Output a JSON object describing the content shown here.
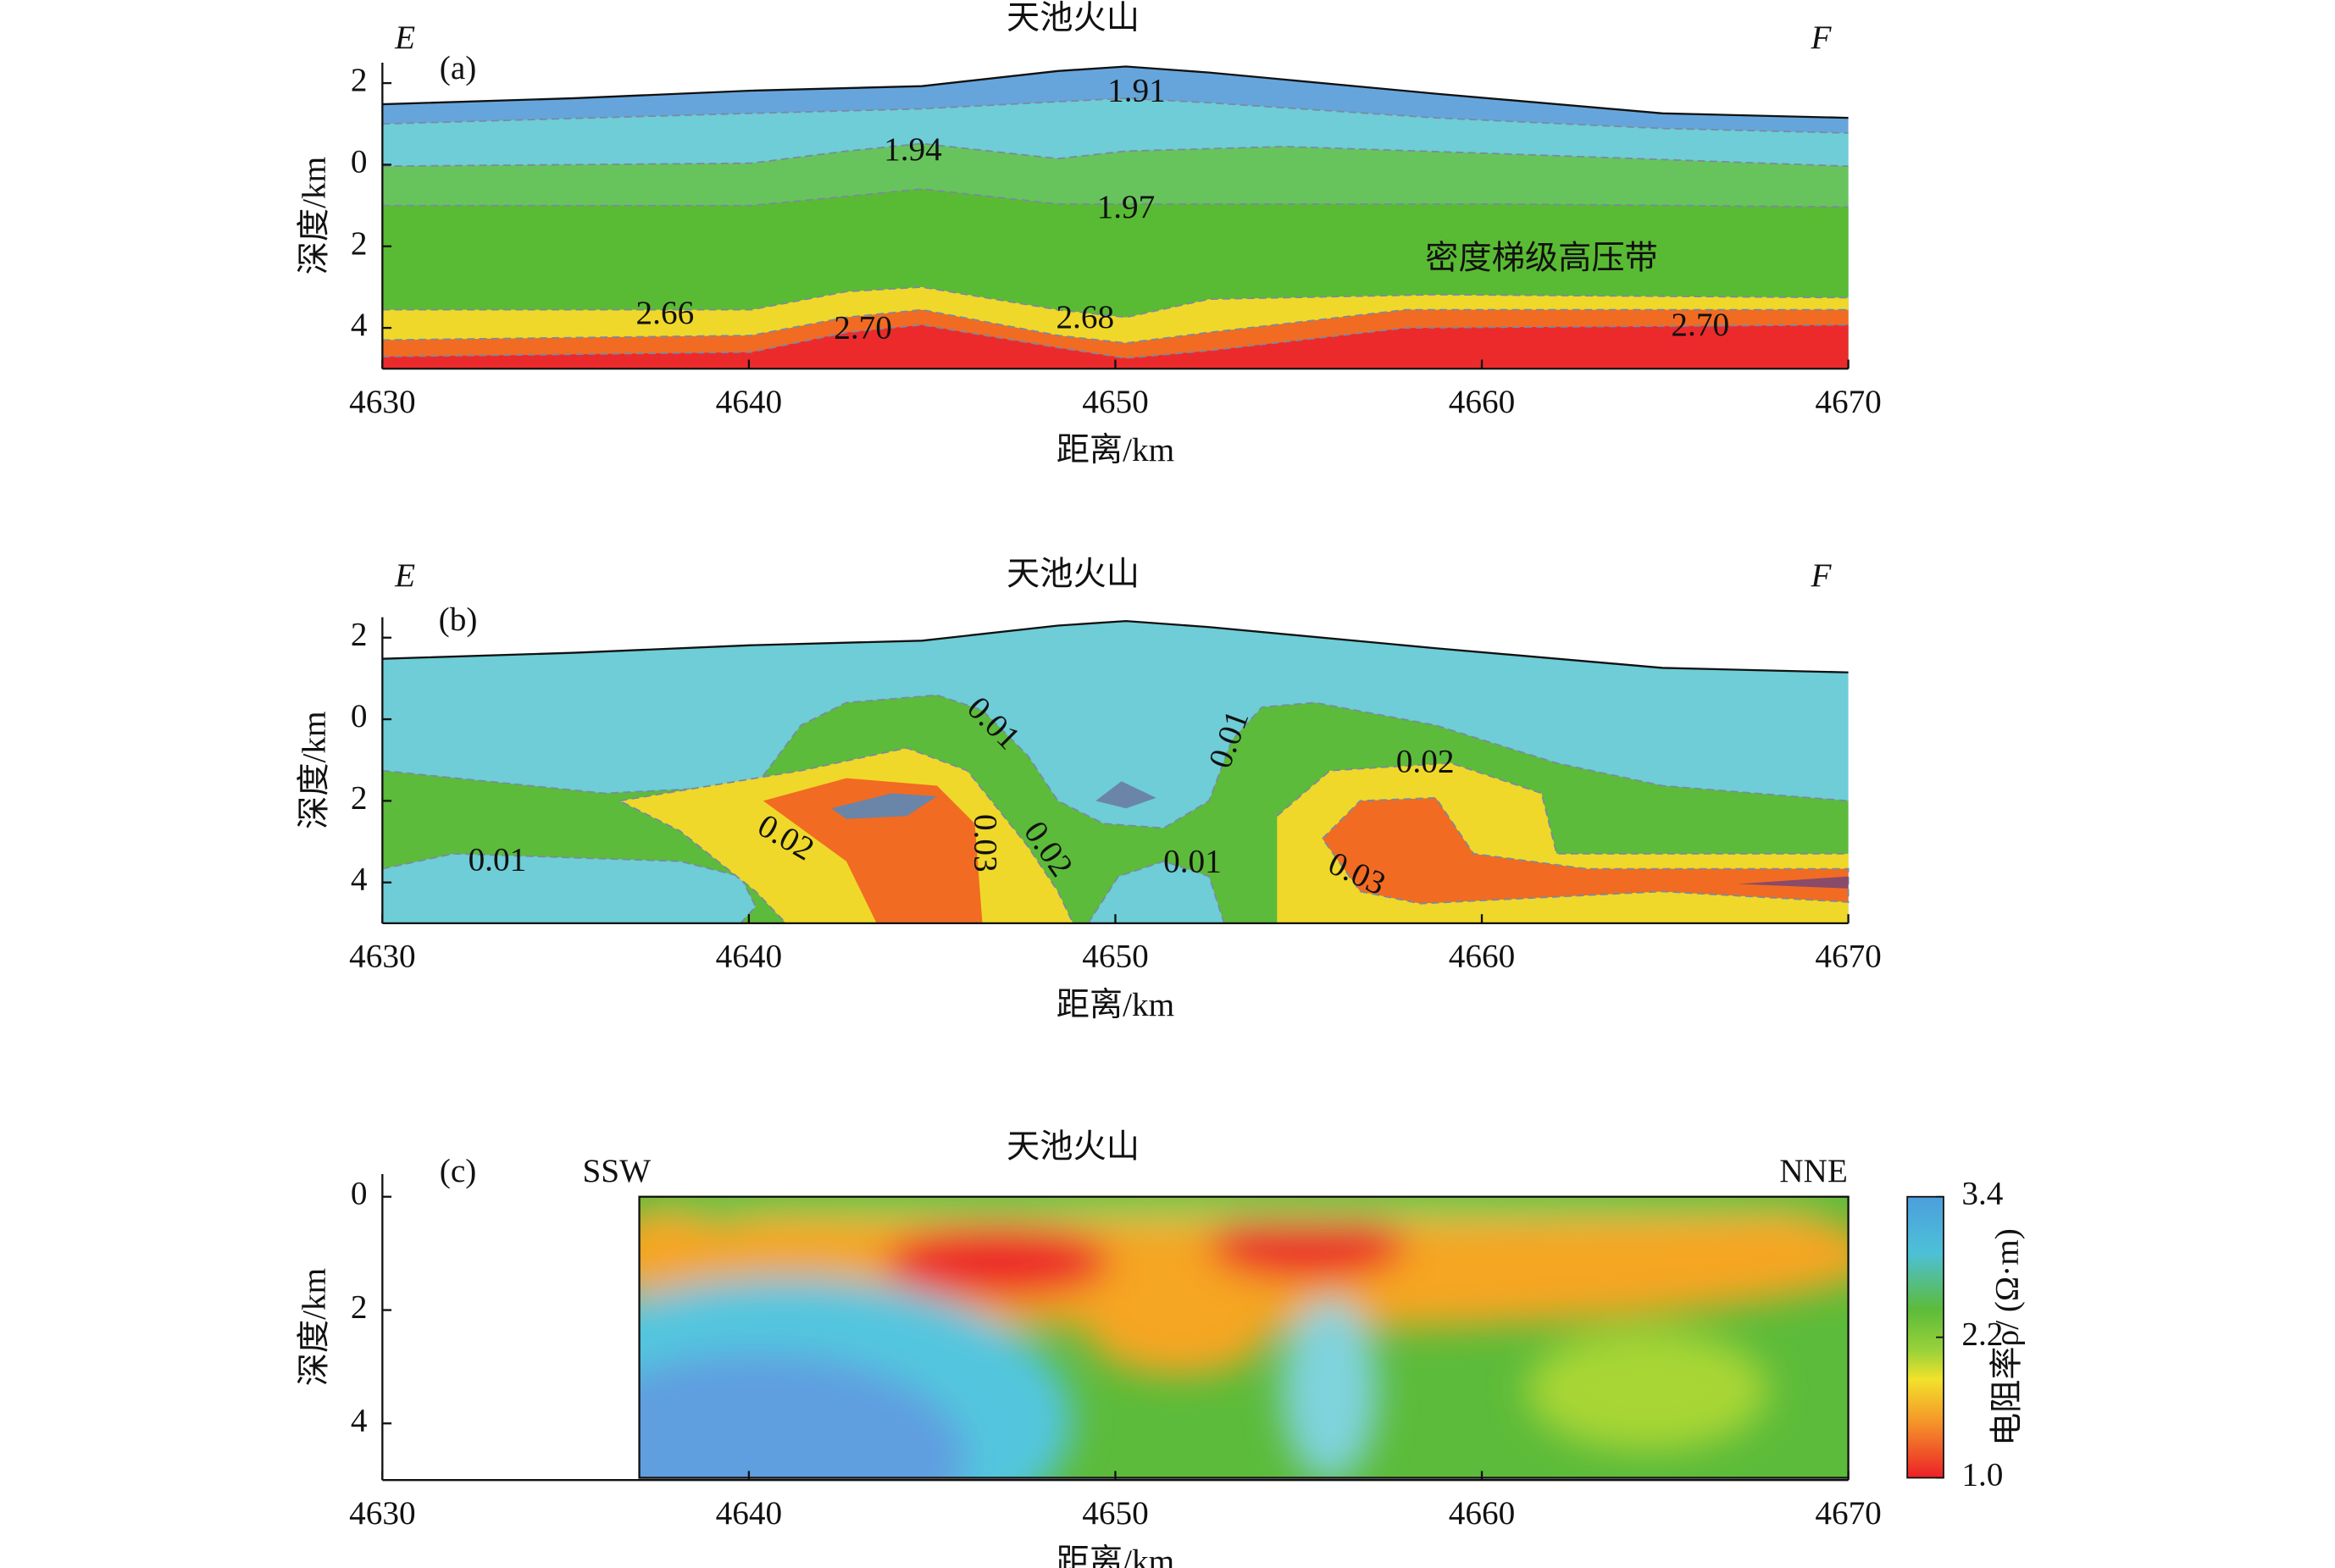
{
  "chart_data": [
    {
      "type": "contour",
      "title": "天池火山",
      "x_label": "距离/km",
      "y_label": "深度/km",
      "xlim": [
        4630,
        4670
      ],
      "xticks": [
        4630,
        4640,
        4650,
        4660,
        4670
      ],
      "ylim": [
        -2.5,
        5
      ],
      "yticks": [
        {
          "value": -2,
          "label": "2"
        },
        0,
        2,
        4
      ],
      "annotations": [
        "E",
        "F",
        "(a)",
        "密度梯级高压带"
      ],
      "values": [
        1.91,
        1.94,
        1.97,
        2.66,
        2.7,
        2.68,
        2.7
      ],
      "value_labels": [
        "1.91",
        "1.94",
        "1.97",
        "2.66",
        "2.70",
        "2.68",
        "2.70"
      ]
    },
    {
      "type": "contour",
      "title": "天池火山",
      "x_label": "距离/km",
      "y_label": "深度/km",
      "xlim": [
        4630,
        4670
      ],
      "xticks": [
        4630,
        4640,
        4650,
        4660,
        4670
      ],
      "ylim": [
        -2.5,
        5
      ],
      "yticks": [
        {
          "value": -2,
          "label": "2"
        },
        0,
        2,
        4
      ],
      "annotations": [
        "E",
        "F",
        "(b)"
      ],
      "values": [
        0.01,
        0.01,
        0.02,
        0.02,
        0.03,
        0.02,
        0.01,
        0.03,
        0.01
      ]
    },
    {
      "type": "resistivity",
      "title": "天池火山",
      "x_label": "距离/km",
      "y_label": "深度/km",
      "xlim": [
        4630,
        4670
      ],
      "xticks": [
        4630,
        4640,
        4650,
        4660,
        4670
      ],
      "ylim": [
        -0.4,
        5
      ],
      "yticks": [
        0,
        2,
        4
      ],
      "annotations": [
        "(c)",
        "SSW",
        "NNE"
      ],
      "colorbar": {
        "label": "电阻率ρ/ (Ω·m)",
        "lim": [
          1,
          3.4
        ],
        "ticks": [
          {
            "value": 1,
            "label": "1.0"
          },
          2.2,
          3.4
        ]
      }
    }
  ]
}
